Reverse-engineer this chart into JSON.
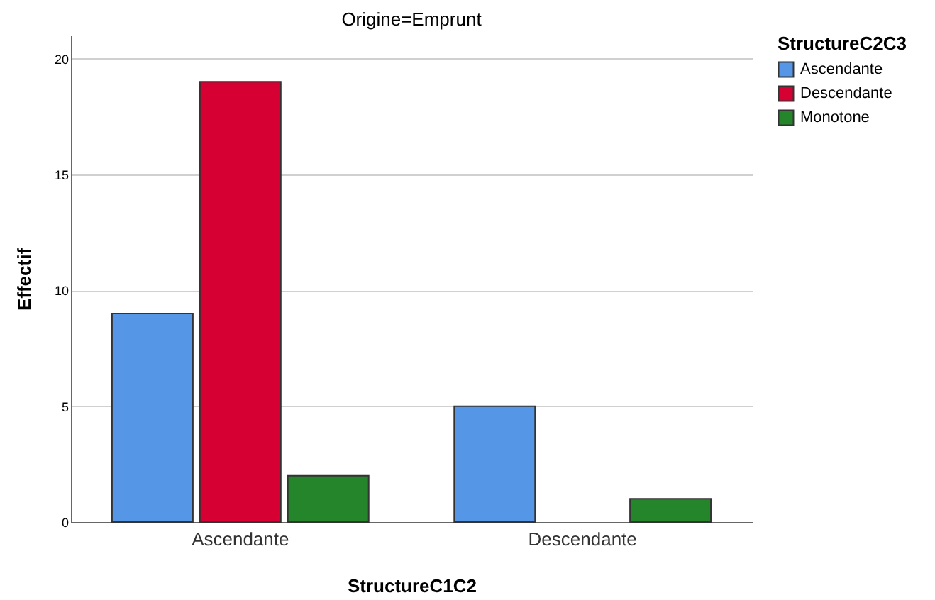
{
  "chart_data": {
    "type": "bar",
    "title": "Origine=Emprunt",
    "xlabel": "StructureC1C2",
    "ylabel": "Effectif",
    "legend_title": "StructureC2C3",
    "categories": [
      "Ascendante",
      "Descendante"
    ],
    "series": [
      {
        "name": "Ascendante",
        "color": "#5596e6",
        "values": [
          9,
          5
        ]
      },
      {
        "name": "Descendante",
        "color": "#d70032",
        "values": [
          19,
          null
        ]
      },
      {
        "name": "Monotone",
        "color": "#24852a",
        "values": [
          2,
          1
        ]
      }
    ],
    "ylim": [
      0,
      21
    ],
    "yticks": [
      0,
      5,
      10,
      15,
      20
    ],
    "grid": "y",
    "legend": "top right"
  }
}
